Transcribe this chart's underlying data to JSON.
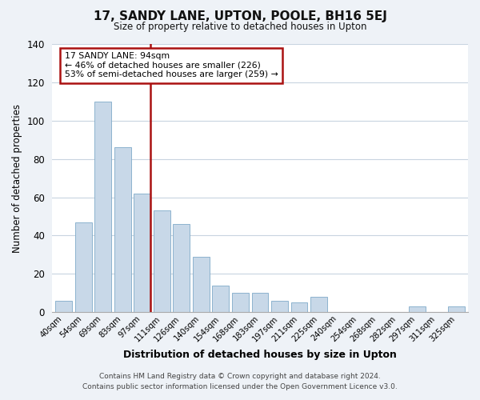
{
  "title": "17, SANDY LANE, UPTON, POOLE, BH16 5EJ",
  "subtitle": "Size of property relative to detached houses in Upton",
  "xlabel": "Distribution of detached houses by size in Upton",
  "ylabel": "Number of detached properties",
  "categories": [
    "40sqm",
    "54sqm",
    "69sqm",
    "83sqm",
    "97sqm",
    "111sqm",
    "126sqm",
    "140sqm",
    "154sqm",
    "168sqm",
    "183sqm",
    "197sqm",
    "211sqm",
    "225sqm",
    "240sqm",
    "254sqm",
    "268sqm",
    "282sqm",
    "297sqm",
    "311sqm",
    "325sqm"
  ],
  "values": [
    6,
    47,
    110,
    86,
    62,
    53,
    46,
    29,
    14,
    10,
    10,
    6,
    5,
    8,
    0,
    0,
    0,
    0,
    3,
    0,
    3
  ],
  "bar_color": "#c8d8e8",
  "bar_edge_color": "#7faac8",
  "highlight_color": "#aa1111",
  "highlight_index": 4,
  "ylim": [
    0,
    140
  ],
  "yticks": [
    0,
    20,
    40,
    60,
    80,
    100,
    120,
    140
  ],
  "annotation_box_text": "17 SANDY LANE: 94sqm\n← 46% of detached houses are smaller (226)\n53% of semi-detached houses are larger (259) →",
  "footer_line1": "Contains HM Land Registry data © Crown copyright and database right 2024.",
  "footer_line2": "Contains public sector information licensed under the Open Government Licence v3.0.",
  "background_color": "#eef2f7",
  "plot_background_color": "#ffffff",
  "grid_color": "#c8d4e0"
}
